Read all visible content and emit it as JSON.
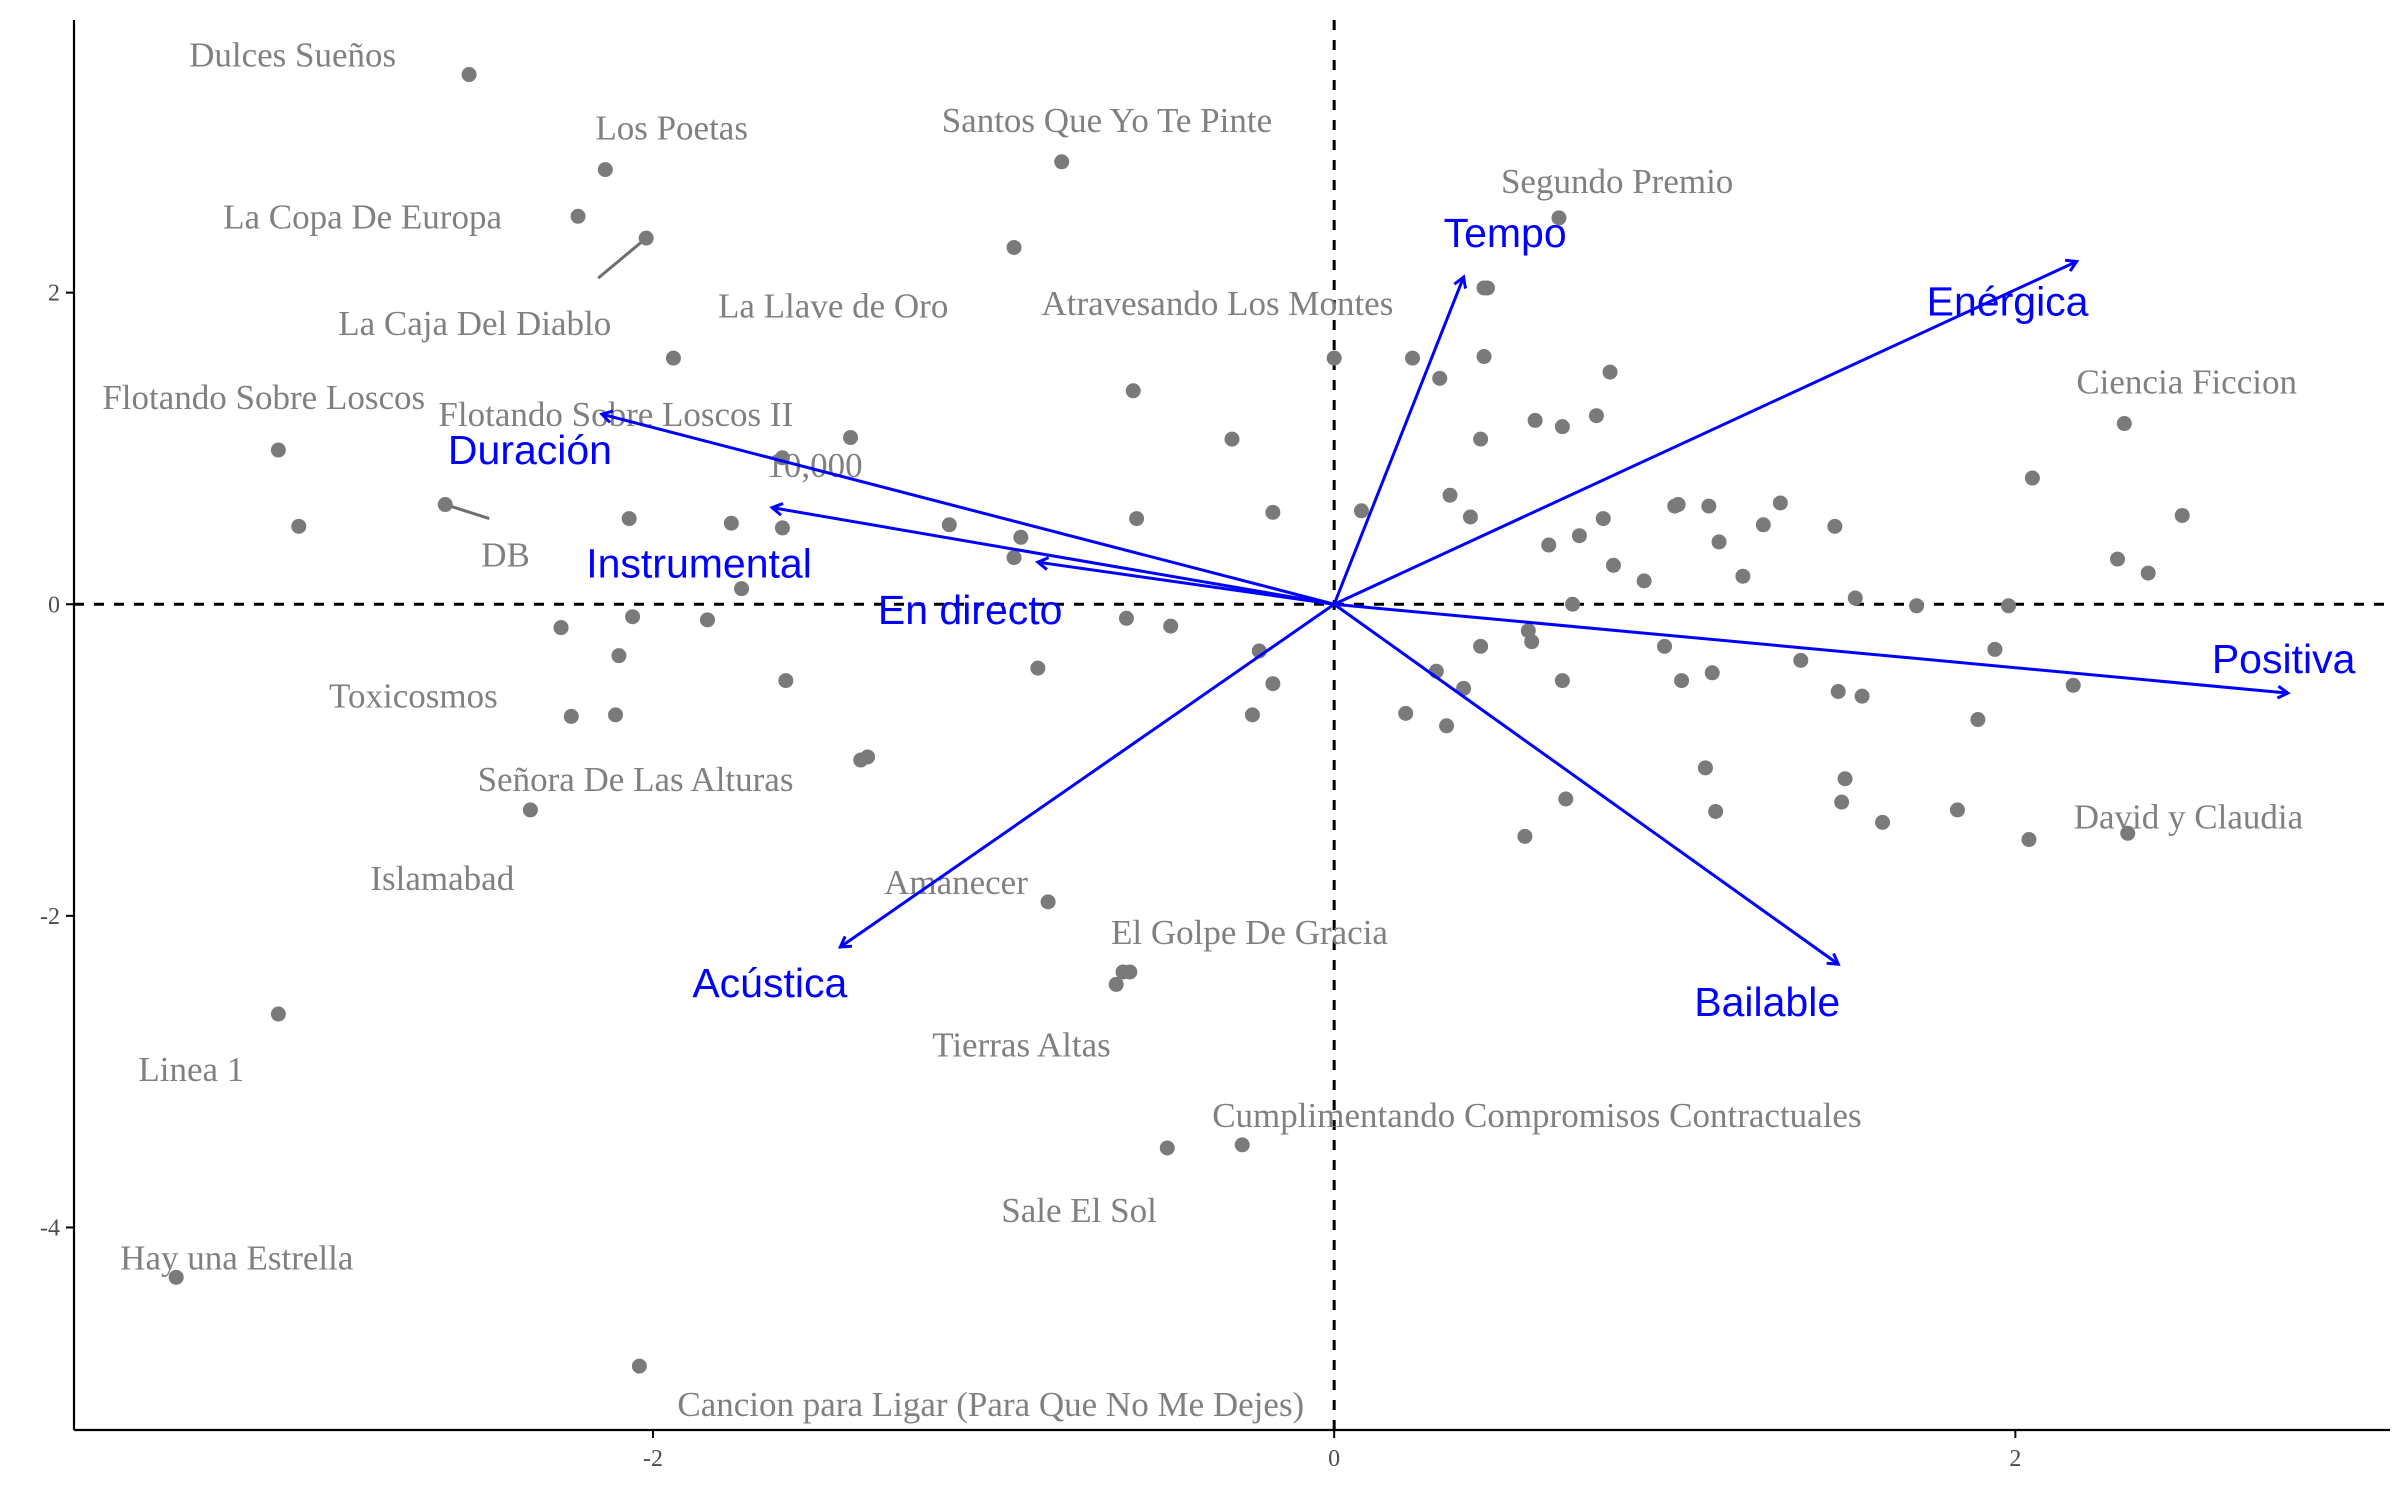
{
  "colors": {
    "points": "#7a7a7a",
    "labels": "#808080",
    "arrows": "#0000ff",
    "axis": "#000000"
  },
  "chart_data": {
    "type": "scatter",
    "title": "",
    "xlabel": "",
    "ylabel": "",
    "xlim": [
      -3.7,
      3.1
    ],
    "ylim": [
      -5.3,
      3.75
    ],
    "xticks": [
      -2,
      0,
      2
    ],
    "yticks": [
      -4,
      -2,
      0,
      2
    ],
    "grid": false,
    "reference_lines": {
      "x": 0,
      "y": 0,
      "style": "dashed"
    },
    "labeled_points": [
      {
        "label": "Dulces Sueños",
        "x": -2.54,
        "y": 3.4
      },
      {
        "label": "Los Poetas",
        "x": -2.14,
        "y": 2.79
      },
      {
        "label": "La Copa De Europa",
        "x": -2.22,
        "y": 2.49
      },
      {
        "label": "La Caja Del Diablo",
        "x": -2.02,
        "y": 2.35
      },
      {
        "label": "Santos Que Yo Te Pinte",
        "x": -0.8,
        "y": 2.84
      },
      {
        "label": "Segundo Premio",
        "x": 0.66,
        "y": 2.48
      },
      {
        "label": "La Llave de Oro",
        "x": -0.94,
        "y": 2.29
      },
      {
        "label": "Atravesando Los Montes",
        "x": 0.45,
        "y": 2.03
      },
      {
        "label": "Flotando Sobre Loscos",
        "x": -3.1,
        "y": 0.99
      },
      {
        "label": "Flotando Sobre Loscos II",
        "x": -1.94,
        "y": 1.58
      },
      {
        "label": "Ciencia Ficcion",
        "x": 2.32,
        "y": 1.16
      },
      {
        "label": "10,000",
        "x": -1.62,
        "y": 0.94
      },
      {
        "label": "DB",
        "x": -2.61,
        "y": 0.64
      },
      {
        "label": "Toxicosmos",
        "x": -2.27,
        "y": -0.15
      },
      {
        "label": "Señora De Las Alturas",
        "x": -1.37,
        "y": -0.98
      },
      {
        "label": "Islamabad",
        "x": -2.36,
        "y": -1.32
      },
      {
        "label": "David y Claudia",
        "x": 2.33,
        "y": -1.47
      },
      {
        "label": "Amanecer",
        "x": -0.84,
        "y": -1.91
      },
      {
        "label": "El Golpe De Gracia",
        "x": -0.62,
        "y": -2.36
      },
      {
        "label": "Tierras Altas",
        "x": -0.64,
        "y": -2.44
      },
      {
        "label": "Linea 1",
        "x": -3.1,
        "y": -2.63
      },
      {
        "label": "Cumplimentando Compromisos Contractuales",
        "x": -0.27,
        "y": -3.47
      },
      {
        "label": "Sale El Sol",
        "x": -0.49,
        "y": -3.49
      },
      {
        "label": "Hay una Estrella",
        "x": -3.4,
        "y": -4.32
      },
      {
        "label": "Cancion para Ligar (Para Que No Me Dejes)",
        "x": -2.04,
        "y": -4.89
      }
    ],
    "unlabeled_points": [
      [
        -3.04,
        0.5
      ],
      [
        -2.07,
        0.55
      ],
      [
        -1.77,
        0.52
      ],
      [
        -1.62,
        0.49
      ],
      [
        -1.42,
        1.07
      ],
      [
        -1.13,
        0.51
      ],
      [
        -0.92,
        0.43
      ],
      [
        -0.94,
        0.3
      ],
      [
        -1.74,
        0.1
      ],
      [
        -2.06,
        -0.08
      ],
      [
        -1.84,
        -0.1
      ],
      [
        -2.27,
        -0.15
      ],
      [
        -2.1,
        -0.33
      ],
      [
        -2.24,
        -0.72
      ],
      [
        -2.11,
        -0.71
      ],
      [
        -1.61,
        -0.49
      ],
      [
        -1.39,
        -1.0
      ],
      [
        -0.87,
        -0.41
      ],
      [
        -0.59,
        1.37
      ],
      [
        -0.58,
        0.55
      ],
      [
        -0.61,
        -0.09
      ],
      [
        -0.48,
        -0.14
      ],
      [
        -0.3,
        1.06
      ],
      [
        -0.18,
        0.59
      ],
      [
        -0.22,
        -0.3
      ],
      [
        -0.18,
        -0.51
      ],
      [
        -0.24,
        -0.71
      ],
      [
        -0.6,
        -2.36
      ],
      [
        0.0,
        1.58
      ],
      [
        0.08,
        0.6
      ],
      [
        0.23,
        1.58
      ],
      [
        0.31,
        1.45
      ],
      [
        0.44,
        2.03
      ],
      [
        0.44,
        1.59
      ],
      [
        0.43,
        1.06
      ],
      [
        0.34,
        0.7
      ],
      [
        0.4,
        0.56
      ],
      [
        0.3,
        -0.43
      ],
      [
        0.38,
        -0.54
      ],
      [
        0.21,
        -0.7
      ],
      [
        0.33,
        -0.78
      ],
      [
        0.43,
        -0.27
      ],
      [
        0.59,
        1.18
      ],
      [
        0.67,
        1.14
      ],
      [
        0.81,
        1.49
      ],
      [
        0.77,
        1.21
      ],
      [
        0.63,
        0.38
      ],
      [
        0.72,
        0.44
      ],
      [
        0.79,
        0.55
      ],
      [
        0.82,
        0.25
      ],
      [
        0.91,
        0.15
      ],
      [
        0.7,
        0.0
      ],
      [
        0.57,
        -0.17
      ],
      [
        0.58,
        -0.24
      ],
      [
        0.67,
        -0.49
      ],
      [
        0.56,
        -1.49
      ],
      [
        0.68,
        -1.25
      ],
      [
        1.0,
        0.63
      ],
      [
        1.01,
        0.64
      ],
      [
        1.1,
        0.63
      ],
      [
        1.13,
        0.4
      ],
      [
        1.2,
        0.18
      ],
      [
        1.26,
        0.51
      ],
      [
        1.31,
        0.65
      ],
      [
        1.47,
        0.5
      ],
      [
        1.53,
        0.04
      ],
      [
        0.97,
        -0.27
      ],
      [
        1.02,
        -0.49
      ],
      [
        1.09,
        -1.05
      ],
      [
        1.12,
        -1.33
      ],
      [
        1.11,
        -0.44
      ],
      [
        1.37,
        -0.36
      ],
      [
        1.48,
        -0.56
      ],
      [
        1.5,
        -1.12
      ],
      [
        1.49,
        -1.27
      ],
      [
        1.55,
        -0.59
      ],
      [
        1.61,
        -1.4
      ],
      [
        1.71,
        -0.01
      ],
      [
        1.83,
        -1.32
      ],
      [
        1.89,
        -0.74
      ],
      [
        1.94,
        -0.29
      ],
      [
        1.98,
        -0.01
      ],
      [
        2.05,
        0.81
      ],
      [
        2.04,
        -1.51
      ],
      [
        2.17,
        -0.52
      ],
      [
        2.3,
        0.29
      ],
      [
        2.39,
        0.2
      ],
      [
        2.49,
        0.57
      ]
    ],
    "loadings": [
      {
        "name": "Tempo",
        "x": 0.38,
        "y": 2.1
      },
      {
        "name": "Enérgica",
        "x": 2.18,
        "y": 2.2
      },
      {
        "name": "Duración",
        "x": -2.15,
        "y": 1.22
      },
      {
        "name": "Instrumental",
        "x": -1.65,
        "y": 0.62
      },
      {
        "name": "En directo",
        "x": -0.87,
        "y": 0.27
      },
      {
        "name": "Positiva",
        "x": 2.8,
        "y": -0.57
      },
      {
        "name": "Acústica",
        "x": -1.45,
        "y": -2.2
      },
      {
        "name": "Bailable",
        "x": 1.48,
        "y": -2.31
      }
    ]
  }
}
